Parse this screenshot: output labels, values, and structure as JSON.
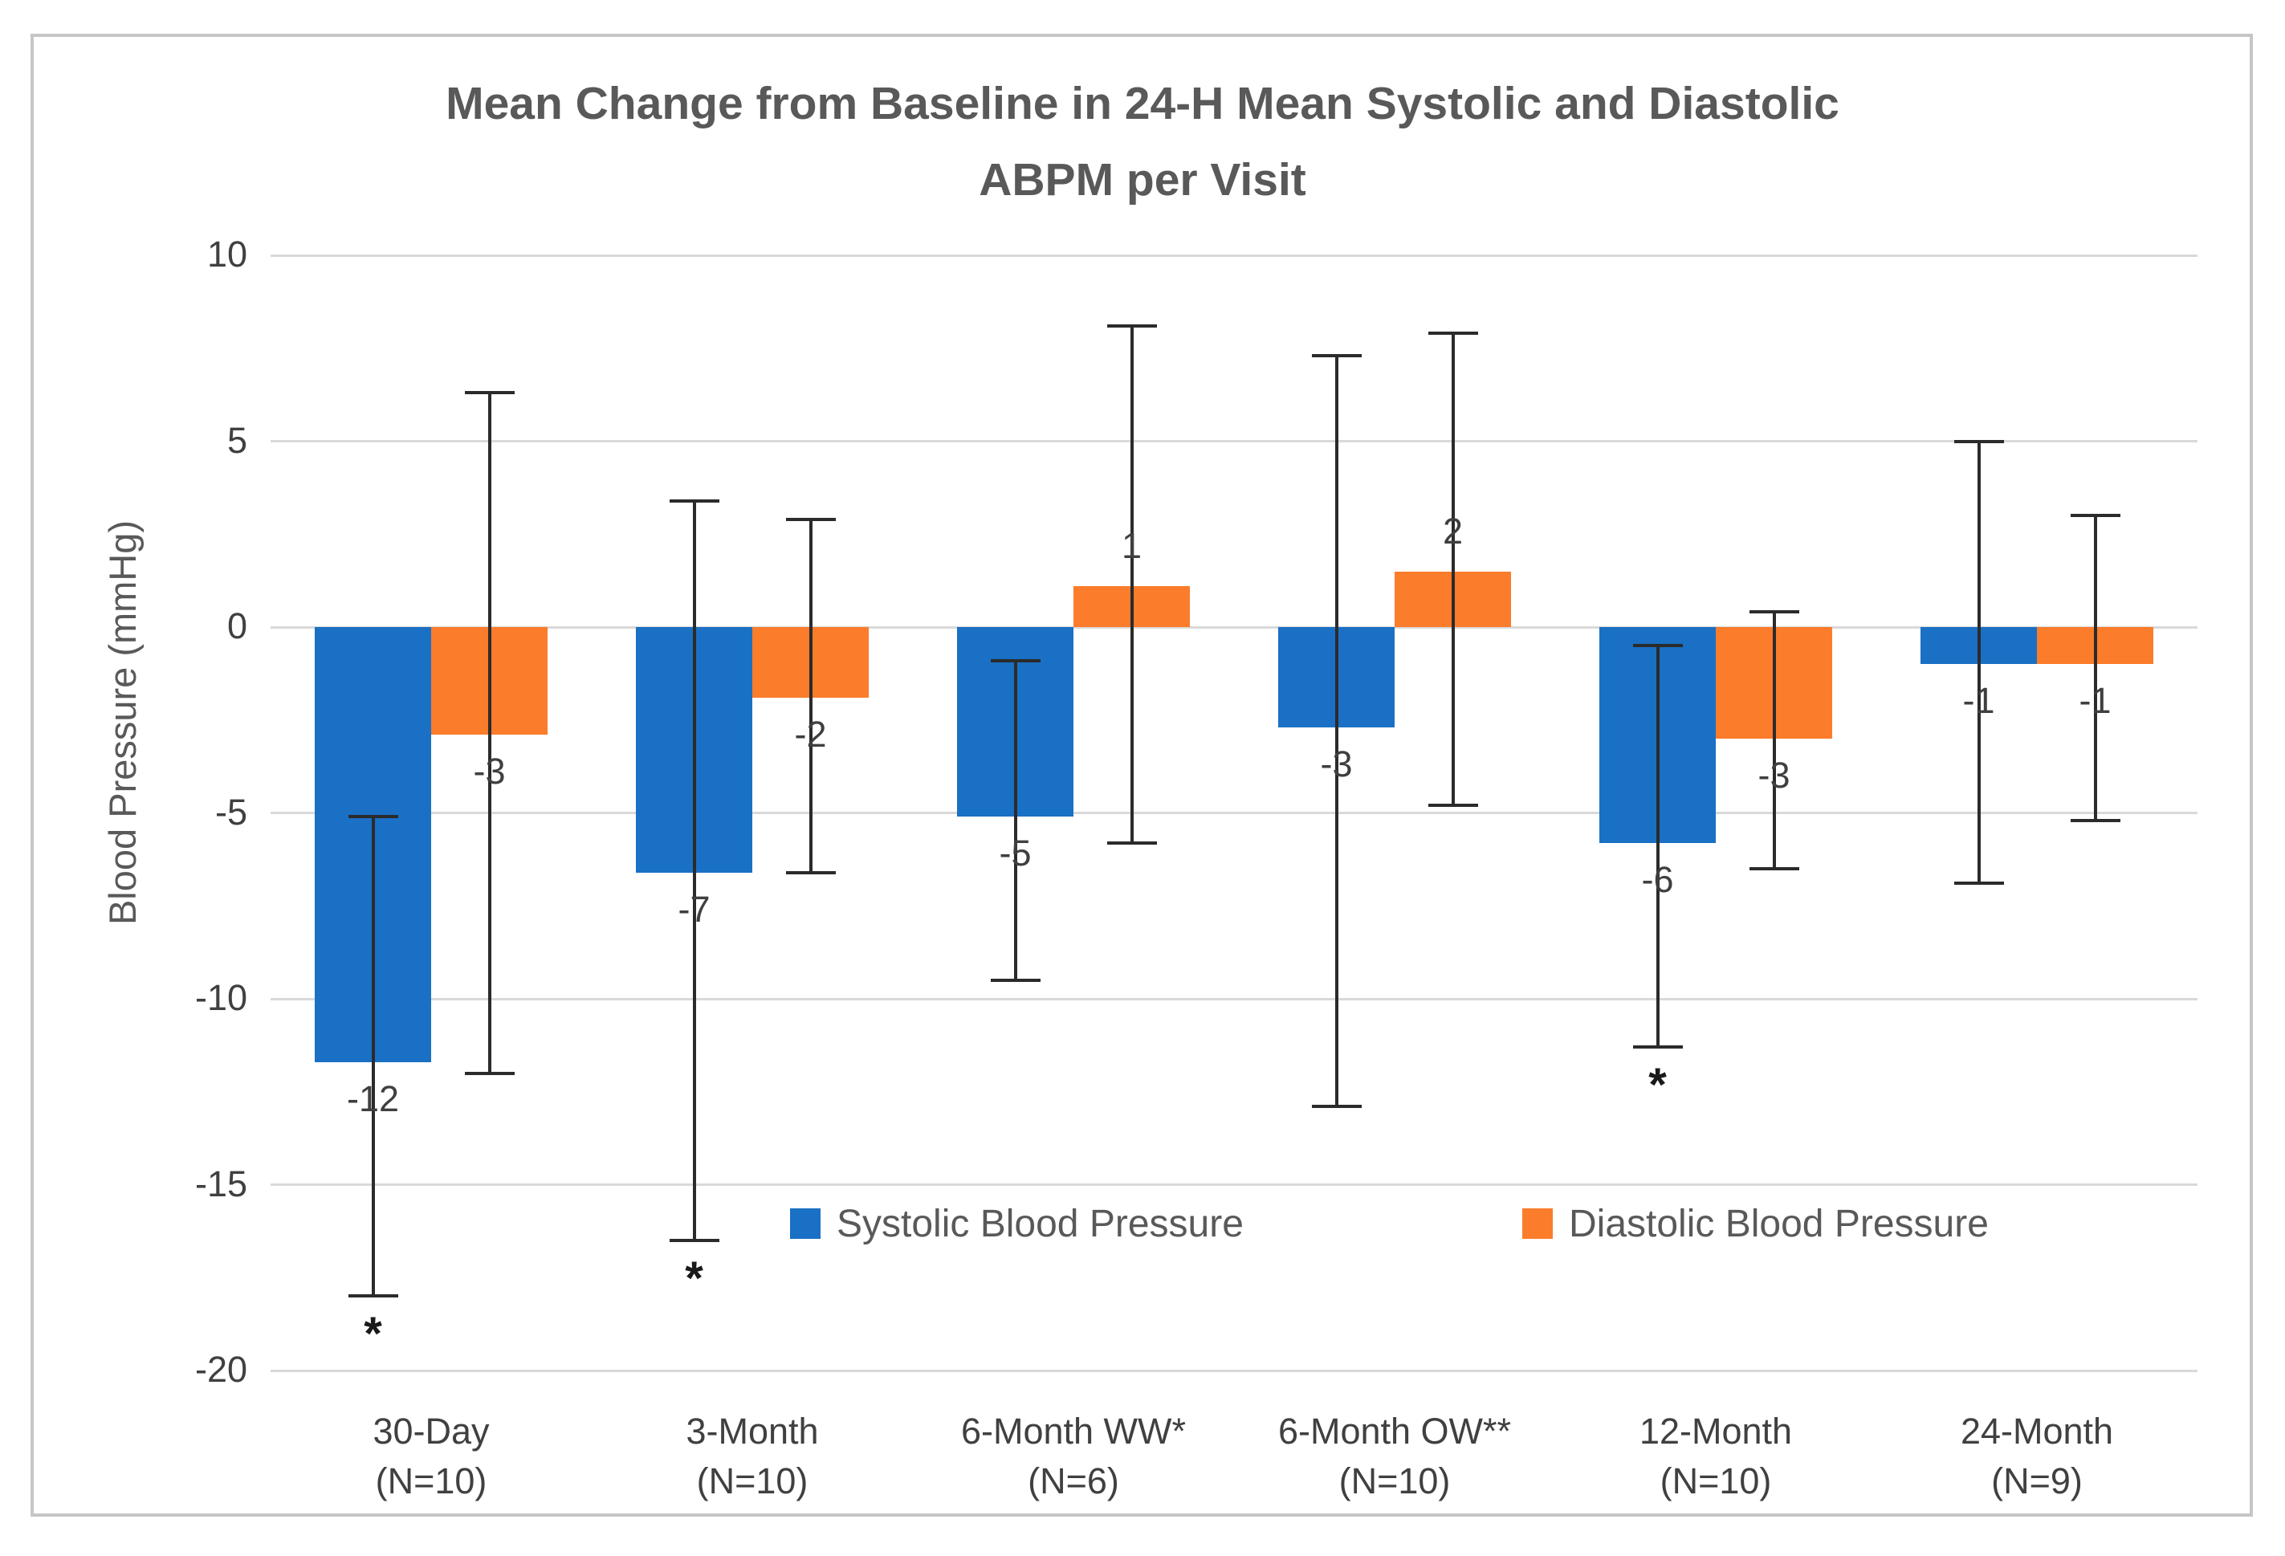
{
  "title": {
    "line1": "Mean Change from Baseline in 24-H Mean Systolic and Diastolic",
    "line2": "ABPM per Visit"
  },
  "significance_marker": "*",
  "colors": {
    "systolic": "#1A70C4",
    "diastolic": "#FB7C2B",
    "gridline": "#D9D9D9",
    "figure_border": "#C6C6C6",
    "title_text": "#595959",
    "tick_text": "#404040",
    "error_bar": "#2B2B2B"
  },
  "chart_data": {
    "type": "bar",
    "title": "Mean Change from Baseline in 24-H Mean Systolic and Diastolic ABPM per Visit",
    "xlabel": "",
    "ylabel": "Blood Pressure (mmHg)",
    "ylim": [
      -20,
      10
    ],
    "yticks": [
      10,
      5,
      0,
      -5,
      -10,
      -15,
      -20
    ],
    "grid": true,
    "legend_position": "inside-bottom",
    "categories": [
      {
        "label": "30-Day",
        "n": "(N=10)"
      },
      {
        "label": "3-Month",
        "n": "(N=10)"
      },
      {
        "label": "6-Month WW*",
        "n": "(N=6)"
      },
      {
        "label": "6-Month OW**",
        "n": "(N=10)"
      },
      {
        "label": "12-Month",
        "n": "(N=10)"
      },
      {
        "label": "24-Month",
        "n": "(N=9)"
      }
    ],
    "series": [
      {
        "name": "Systolic Blood Pressure",
        "color": "#1A70C4",
        "values": [
          -12,
          -7,
          -5,
          -3,
          -6,
          -1
        ],
        "data_labels": [
          "-12",
          "-7",
          "-5",
          "-3",
          "-6",
          "-1"
        ],
        "bar_values": [
          -11.7,
          -6.6,
          -5.1,
          -2.7,
          -5.8,
          -1.0
        ],
        "error_high": [
          -5.1,
          3.4,
          -0.9,
          7.3,
          -0.5,
          5.0
        ],
        "error_low": [
          -18.0,
          -16.5,
          -9.5,
          -12.9,
          -11.3,
          -6.9
        ],
        "significant": [
          true,
          true,
          false,
          false,
          true,
          false
        ]
      },
      {
        "name": "Diastolic Blood Pressure",
        "color": "#FB7C2B",
        "values": [
          -3,
          -2,
          1,
          2,
          -3,
          -1
        ],
        "data_labels": [
          "-3",
          "-2",
          "1",
          "2",
          "-3",
          "-1"
        ],
        "bar_values": [
          -2.9,
          -1.9,
          1.1,
          1.5,
          -3.0,
          -1.0
        ],
        "error_high": [
          6.3,
          2.9,
          8.1,
          7.9,
          0.4,
          3.0
        ],
        "error_low": [
          -12.0,
          -6.6,
          -5.8,
          -4.8,
          -6.5,
          -5.2
        ],
        "significant": [
          false,
          false,
          false,
          false,
          false,
          false
        ]
      }
    ]
  }
}
